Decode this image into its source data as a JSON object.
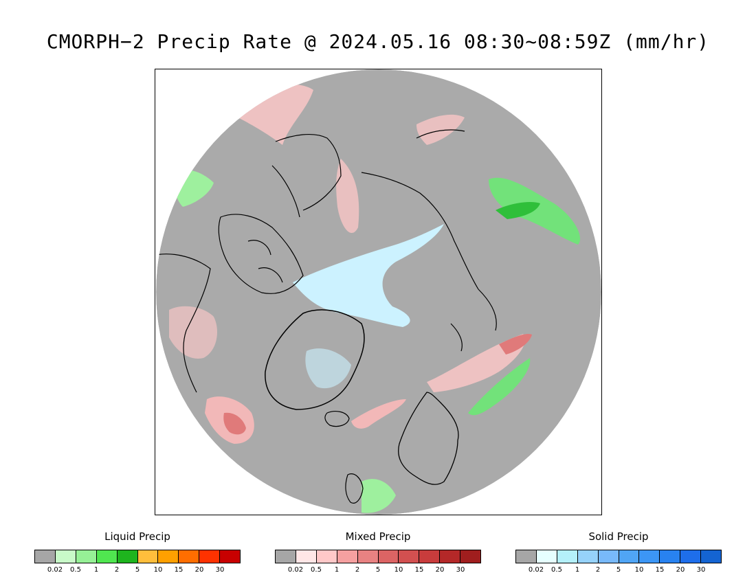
{
  "title": "CMORPH−2 Precip Rate @ 2024.05.16 08:30~08:59Z (mm/hr)",
  "map": {
    "projection": "north-polar-stereographic",
    "background_color": "#aaaaaa",
    "regions": [
      {
        "kind": "mixed",
        "name": "NE Atlantic mixed band",
        "color": "#f2b8b8"
      },
      {
        "kind": "mixed",
        "name": "Labrador Sea mixed core",
        "color": "#e07a7a"
      },
      {
        "kind": "liquid",
        "name": "Siberia liquid band",
        "color": "#72e27a"
      },
      {
        "kind": "liquid",
        "name": "Scandinavia liquid band",
        "color": "#72e27a"
      },
      {
        "kind": "solid",
        "name": "Arctic Ocean snow swirl",
        "color": "#ccf2ff"
      }
    ]
  },
  "legends": [
    {
      "title": "Liquid Precip",
      "colors": [
        "#a6a6a6",
        "#c8fac8",
        "#96f096",
        "#50e650",
        "#1eb41e",
        "#ffbe3c",
        "#ffa000",
        "#ff6e00",
        "#ff3200",
        "#c80000"
      ],
      "ticks": [
        "0.02",
        "0.5",
        "1",
        "2",
        "5",
        "10",
        "15",
        "20",
        "30"
      ]
    },
    {
      "title": "Mixed Precip",
      "colors": [
        "#a6a6a6",
        "#ffe6e6",
        "#ffc8c8",
        "#f5a0a0",
        "#e88282",
        "#dc6464",
        "#d25050",
        "#c83c3c",
        "#b42828",
        "#a01e1e"
      ],
      "ticks": [
        "0.02",
        "0.5",
        "1",
        "2",
        "5",
        "10",
        "15",
        "20",
        "30"
      ]
    },
    {
      "title": "Solid Precip",
      "colors": [
        "#a6a6a6",
        "#e6ffff",
        "#b4f0fa",
        "#96d2fa",
        "#78b9fa",
        "#50a5f5",
        "#3c96f5",
        "#2882f0",
        "#1e6eeb",
        "#1464d2"
      ],
      "ticks": [
        "0.02",
        "0.5",
        "1",
        "2",
        "5",
        "10",
        "15",
        "20",
        "30"
      ]
    }
  ]
}
